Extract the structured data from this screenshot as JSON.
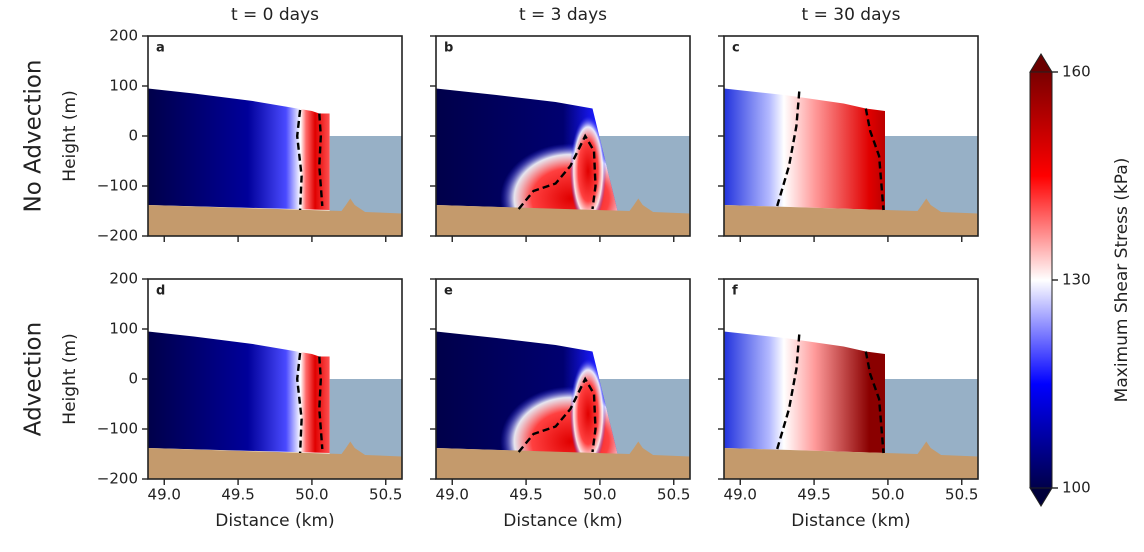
{
  "column_titles": [
    "t = 0 days",
    "t = 3 days",
    "t = 30 days"
  ],
  "row_labels": [
    "No Advection",
    "Advection"
  ],
  "panel_labels": [
    "a",
    "b",
    "c",
    "d",
    "e",
    "f"
  ],
  "y_axis": {
    "label": "Height (m)",
    "lim": [
      -200,
      200
    ],
    "ticks": [
      {
        "value": -200,
        "label": "−200"
      },
      {
        "value": -100,
        "label": "−100"
      },
      0,
      100,
      200
    ]
  },
  "x_axis": {
    "label": "Distance (km)",
    "lim": [
      48.89,
      50.61
    ],
    "ticks": [
      {
        "value": 49,
        "label": "49.0"
      },
      {
        "value": 49.5,
        "label": "49.5"
      },
      {
        "value": 50,
        "label": "50.0"
      },
      {
        "value": 50.5,
        "label": "50.5"
      }
    ]
  },
  "colorbar": {
    "label": "Maximum Shear Stress (kPa)",
    "lim": [
      100,
      160
    ],
    "ticks": [
      100,
      130,
      160
    ]
  }
}
